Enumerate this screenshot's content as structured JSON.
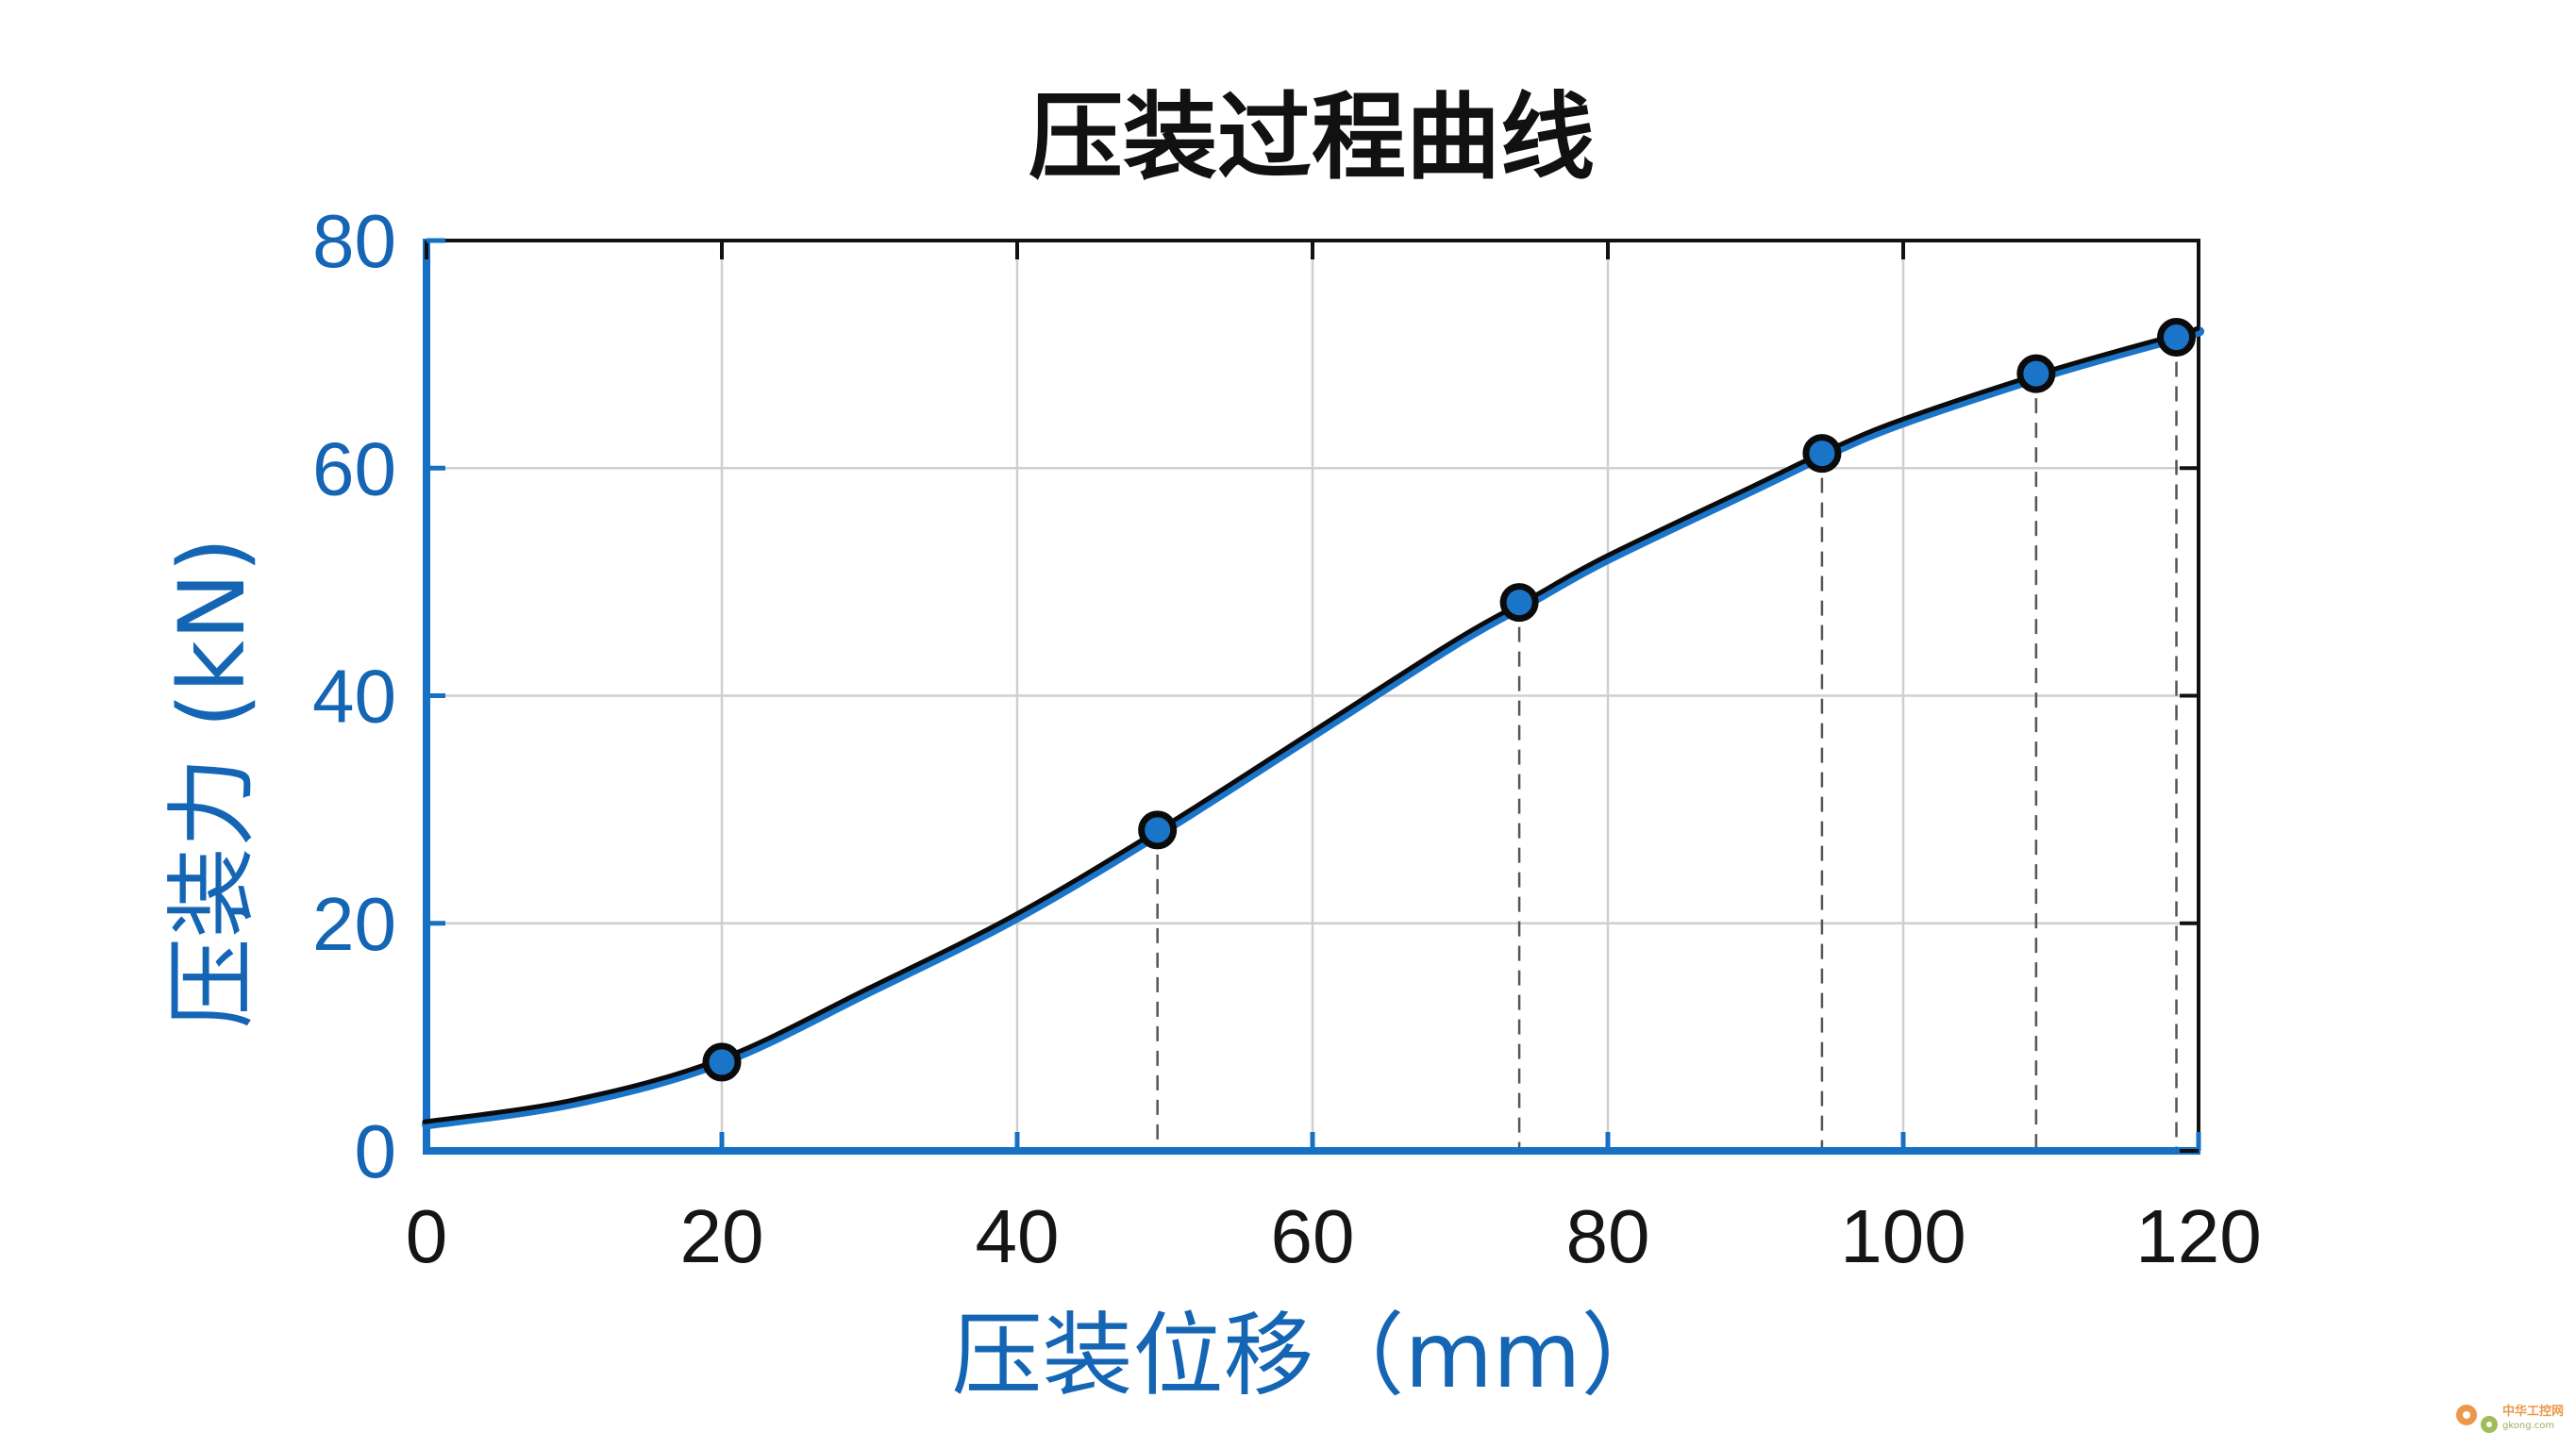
{
  "chart_data": {
    "type": "line",
    "title": "压装过程曲线",
    "xlabel": "压装位移（mm）",
    "ylabel": "压装力 (kN)",
    "xlim": [
      0,
      120
    ],
    "ylim": [
      0,
      80
    ],
    "x_ticks": [
      0,
      20,
      40,
      60,
      80,
      100,
      120
    ],
    "y_ticks": [
      0,
      20,
      40,
      60,
      80
    ],
    "grid": true,
    "series": [
      {
        "type": "line",
        "color": "#1a75c9",
        "x": [
          0,
          10,
          20,
          30,
          40,
          50,
          60,
          70,
          75,
          80,
          90,
          95,
          100,
          110,
          119,
          120
        ],
        "y": [
          2.3,
          4.2,
          7.8,
          14.0,
          20.5,
          28.2,
          36.5,
          44.8,
          48.4,
          52.0,
          58.2,
          61.3,
          64.0,
          68.3,
          71.6,
          72.0
        ]
      },
      {
        "type": "scatter",
        "marker": "circle",
        "color": "#1a75c9",
        "x": [
          20,
          49.5,
          74,
          94.5,
          109,
          118.5
        ],
        "y": [
          7.8,
          28.2,
          48.2,
          61.3,
          68.3,
          71.5
        ]
      }
    ]
  },
  "watermark": {
    "text": "中华工控网",
    "sub": "gkong.com",
    "icon": "gear-icon",
    "color": "#e8872b"
  }
}
